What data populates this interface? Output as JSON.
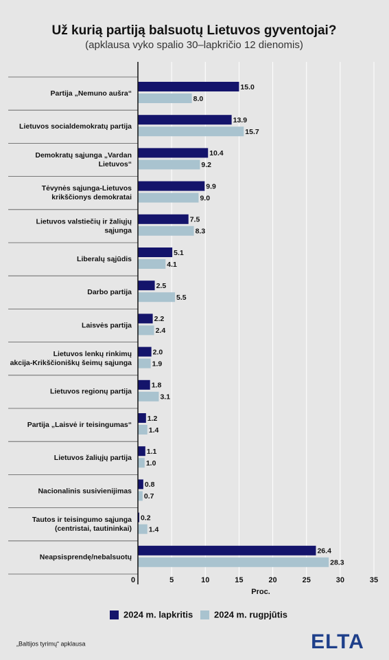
{
  "chart_data": {
    "type": "bar",
    "orientation": "horizontal",
    "title": "Už kurią partiją balsuotų Lietuvos gyventojai?",
    "subtitle": "(apklausa vyko spalio 30–lapkričio 12 dienomis)",
    "x_label": "Proc.",
    "categories": [
      "Partija „Nemuno aušra“",
      "Lietuvos socialdemokratų partija",
      "Demokratų sąjunga „Vardan\nLietuvos“",
      "Tėvynės sąjunga-Lietuvos\nkrikščionys demokratai",
      "Lietuvos valstiečių ir žaliųjų\nsąjunga",
      "Liberalų sąjūdis",
      "Darbo partija",
      "Laisvės partija",
      "Lietuvos lenkų rinkimų\nakcija-Krikščioniškų šeimų sąjunga",
      "Lietuvos regionų partija",
      "Partija „Laisvė ir teisingumas“",
      "Lietuvos žaliųjų partija",
      "Nacionalinis susivienijimas",
      "Tautos ir teisingumo sąjunga\n(centristai, tautininkai)",
      "Neapsisprendę/nebalsuotų"
    ],
    "series": [
      {
        "name": "2024 m. lapkritis",
        "color": "#14146b",
        "values": [
          15.0,
          13.9,
          10.4,
          9.9,
          7.5,
          5.1,
          2.5,
          2.2,
          2.0,
          1.8,
          1.2,
          1.1,
          0.8,
          0.2,
          26.4
        ],
        "value_labels": [
          "15.0",
          "13.9",
          "10.4",
          "9.9",
          "7.5",
          "5.1",
          "2.5",
          "2.2",
          "2.0",
          "1.8",
          "1.2",
          "1.1",
          "0.8",
          "0.2",
          "26.4"
        ]
      },
      {
        "name": "2024 m. rugpjūtis",
        "color": "#a9c3cf",
        "values": [
          8.0,
          15.7,
          9.2,
          9.0,
          8.3,
          4.1,
          5.5,
          2.4,
          1.9,
          3.1,
          1.4,
          1.0,
          0.7,
          1.4,
          28.3
        ],
        "value_labels": [
          "8.0",
          "15.7",
          "9.2",
          "9.0",
          "8.3",
          "4.1",
          "5.5",
          "2.4",
          "1.9",
          "3.1",
          "1.4",
          "1.0",
          "0.7",
          "1.4",
          "28.3"
        ]
      }
    ],
    "xlim": [
      0,
      35
    ],
    "xticks": [
      0,
      5,
      10,
      15,
      20,
      25,
      30,
      35
    ],
    "grid": true,
    "legend": "bottom"
  },
  "footer": {
    "source": "„Baltijos tyrimų“ apklausa",
    "logo": "ELTA"
  }
}
